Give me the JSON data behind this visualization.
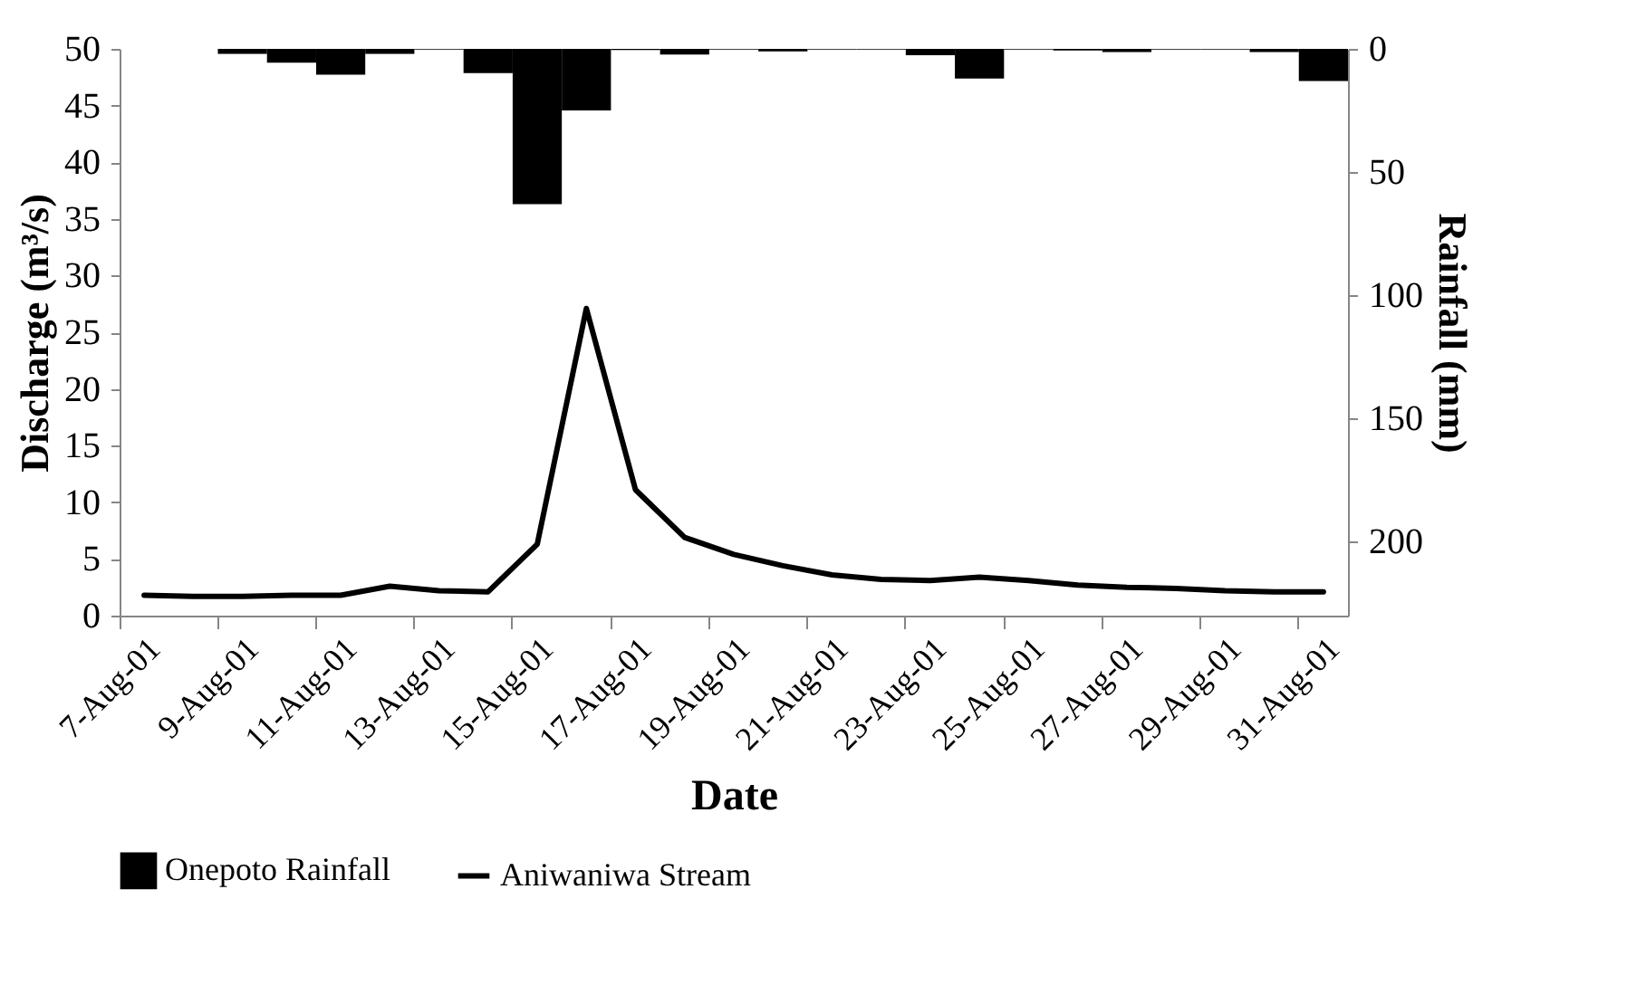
{
  "chart_data": {
    "type": "line",
    "xlabel": "Date",
    "ylabel": "Discharge (m³/s)",
    "y2label": "Rainfall (mm)",
    "categories": [
      "7-Aug-01",
      null,
      "9-Aug-01",
      null,
      "11-Aug-01",
      null,
      "13-Aug-01",
      null,
      "15-Aug-01",
      null,
      "17-Aug-01",
      null,
      "19-Aug-01",
      null,
      "21-Aug-01",
      null,
      "23-Aug-01",
      null,
      "25-Aug-01",
      null,
      "27-Aug-01",
      null,
      "29-Aug-01",
      null,
      "31-Aug-01"
    ],
    "series": [
      {
        "name": "Onepoto Rainfall",
        "type": "bar",
        "axis": "y2",
        "color": "#000000",
        "values": [
          0,
          0,
          2,
          5.6,
          10.5,
          2,
          0.3,
          9.8,
          63,
          25,
          0.5,
          2.3,
          0.3,
          1,
          0.3,
          0.3,
          2.6,
          12,
          0.3,
          0.6,
          1.3,
          0.3,
          0.3,
          1.3,
          13
        ]
      },
      {
        "name": "Aniwaniwa Stream",
        "color": "#000000",
        "values": [
          1.8,
          1.7,
          1.7,
          1.8,
          1.8,
          2.6,
          2.2,
          2.1,
          6.3,
          27.1,
          11.1,
          6.9,
          5.4,
          4.4,
          3.6,
          3.2,
          3.1,
          3.4,
          3.1,
          2.7,
          2.5,
          2.4,
          2.2,
          2.1,
          2.1
        ]
      }
    ],
    "ylim": [
      0,
      50
    ],
    "yticks": [
      0,
      5,
      10,
      15,
      20,
      25,
      30,
      35,
      40,
      45,
      50
    ],
    "y2lim": [
      230,
      0
    ],
    "y2ticks": [
      0,
      50,
      100,
      150,
      200
    ],
    "legend": "bottom",
    "line_style": "solid",
    "marker": "none"
  }
}
